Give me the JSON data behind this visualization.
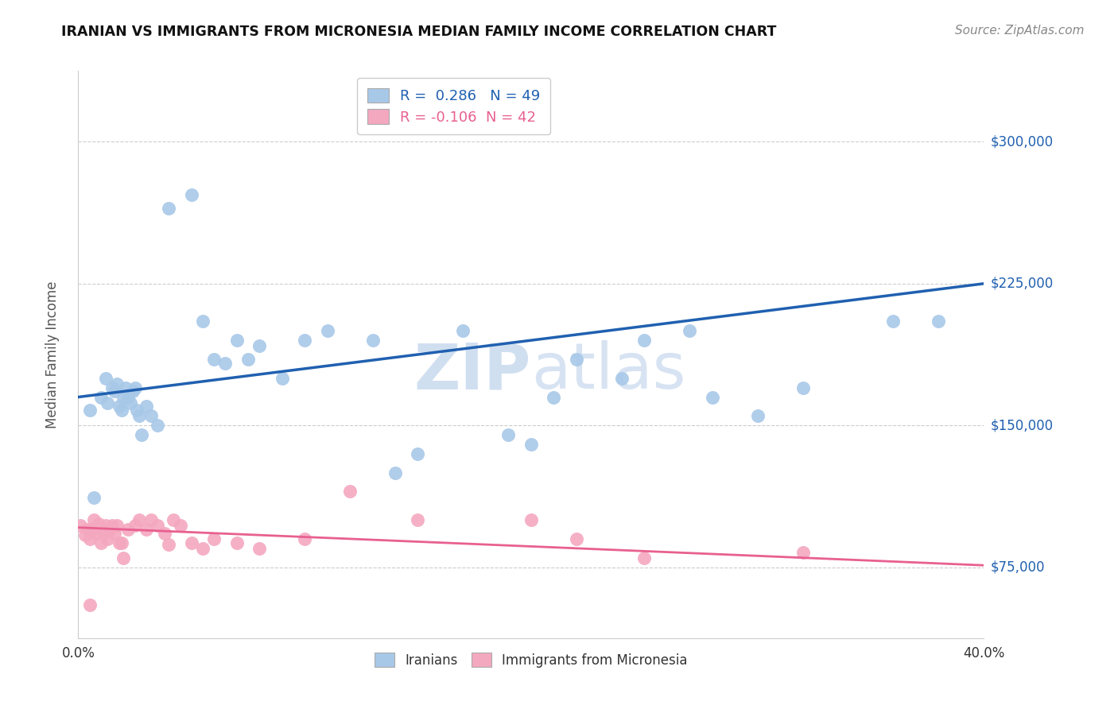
{
  "title": "IRANIAN VS IMMIGRANTS FROM MICRONESIA MEDIAN FAMILY INCOME CORRELATION CHART",
  "source": "Source: ZipAtlas.com",
  "ylabel": "Median Family Income",
  "xlim": [
    0.0,
    0.4
  ],
  "ylim": [
    37500,
    337500
  ],
  "yticks": [
    75000,
    150000,
    225000,
    300000
  ],
  "ytick_labels": [
    "$75,000",
    "$150,000",
    "$225,000",
    "$300,000"
  ],
  "xticks": [
    0.0,
    0.1,
    0.2,
    0.3,
    0.4
  ],
  "xtick_labels": [
    "0.0%",
    "",
    "",
    "",
    "40.0%"
  ],
  "blue_r": 0.286,
  "blue_n": 49,
  "pink_r": -0.106,
  "pink_n": 42,
  "blue_color": "#a8c8e8",
  "pink_color": "#f4a8c0",
  "blue_line_color": "#2060b0",
  "pink_line_color": "#e86090",
  "watermark_color": "#d0dff0",
  "blue_line_y0": 165000,
  "blue_line_y1": 225000,
  "pink_line_y0": 96000,
  "pink_line_y1": 76000,
  "blue_scatter_x": [
    0.005,
    0.007,
    0.01,
    0.012,
    0.013,
    0.015,
    0.016,
    0.017,
    0.018,
    0.019,
    0.02,
    0.021,
    0.022,
    0.023,
    0.024,
    0.025,
    0.026,
    0.027,
    0.028,
    0.03,
    0.032,
    0.035,
    0.04,
    0.05,
    0.055,
    0.06,
    0.065,
    0.07,
    0.075,
    0.08,
    0.09,
    0.1,
    0.11,
    0.13,
    0.14,
    0.15,
    0.17,
    0.19,
    0.2,
    0.21,
    0.22,
    0.24,
    0.25,
    0.27,
    0.28,
    0.3,
    0.32,
    0.36,
    0.38
  ],
  "blue_scatter_y": [
    158000,
    112000,
    165000,
    175000,
    162000,
    170000,
    168000,
    172000,
    160000,
    158000,
    165000,
    170000,
    165000,
    162000,
    168000,
    170000,
    158000,
    155000,
    145000,
    160000,
    155000,
    150000,
    265000,
    272000,
    205000,
    185000,
    183000,
    195000,
    185000,
    192000,
    175000,
    195000,
    200000,
    195000,
    125000,
    135000,
    200000,
    145000,
    140000,
    165000,
    185000,
    175000,
    195000,
    200000,
    165000,
    155000,
    170000,
    205000,
    205000
  ],
  "pink_scatter_x": [
    0.001,
    0.003,
    0.004,
    0.005,
    0.006,
    0.007,
    0.008,
    0.009,
    0.01,
    0.011,
    0.012,
    0.013,
    0.014,
    0.015,
    0.016,
    0.017,
    0.018,
    0.019,
    0.02,
    0.022,
    0.025,
    0.027,
    0.03,
    0.032,
    0.035,
    0.038,
    0.04,
    0.042,
    0.045,
    0.05,
    0.055,
    0.06,
    0.07,
    0.08,
    0.1,
    0.12,
    0.15,
    0.2,
    0.22,
    0.25,
    0.32,
    0.005
  ],
  "pink_scatter_y": [
    97000,
    92000,
    95000,
    90000,
    95000,
    100000,
    93000,
    98000,
    88000,
    93000,
    97000,
    90000,
    95000,
    97000,
    93000,
    97000,
    88000,
    88000,
    80000,
    95000,
    97000,
    100000,
    95000,
    100000,
    97000,
    93000,
    87000,
    100000,
    97000,
    88000,
    85000,
    90000,
    88000,
    85000,
    90000,
    115000,
    100000,
    100000,
    90000,
    80000,
    83000,
    55000
  ]
}
